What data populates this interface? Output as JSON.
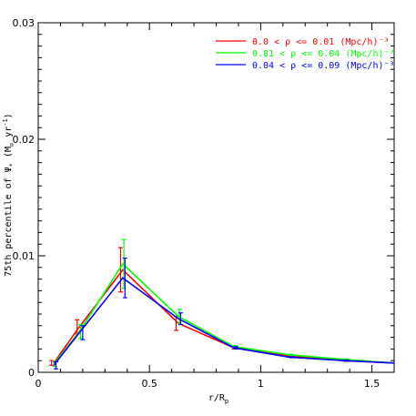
{
  "chart_data": {
    "type": "line",
    "xlabel": "r/R",
    "xlabel_sub": "p",
    "ylabel": "75th percentile of Ψ",
    "ylabel_sub": "*",
    "ylabel_units": " (M",
    "ylabel_units_sun": "⊙",
    "ylabel_units_end": " yr",
    "ylabel_units_exp": "-1",
    "ylabel_units_close": ")",
    "xlim": [
      0,
      1.6
    ],
    "ylim": [
      0,
      0.03
    ],
    "xticks": [
      0,
      0.5,
      1,
      1.5
    ],
    "xtick_labels": [
      "0",
      "0.5",
      "1",
      "1.5"
    ],
    "yticks": [
      0,
      0.01,
      0.02,
      0.03
    ],
    "ytick_labels": [
      "0",
      "0.01",
      "0.02",
      "0.03"
    ],
    "legend_position": "top-right",
    "series": [
      {
        "name": "0.0 < ρ <= 0.01 (Mpc/h)⁻³",
        "color": "#ff0000",
        "x": [
          0.07,
          0.185,
          0.38,
          0.63,
          0.88,
          1.13,
          1.38,
          1.6
        ],
        "y": [
          0.0008,
          0.0039,
          0.0088,
          0.0042,
          0.0021,
          0.0014,
          0.001,
          0.0008
        ],
        "err": [
          0.0002,
          0.0006,
          0.0019,
          0.0006,
          0.0001,
          5e-05,
          5e-05,
          0
        ],
        "err_x": [
          0.06,
          0.175,
          0.37,
          0.62,
          0.88,
          1.13,
          1.38,
          null
        ]
      },
      {
        "name": "0.01 < ρ <= 0.04 (Mpc/h)⁻³",
        "color": "#00ff00",
        "x": [
          0.07,
          0.185,
          0.38,
          0.63,
          0.88,
          1.13,
          1.38,
          1.6
        ],
        "y": [
          0.0007,
          0.0035,
          0.0093,
          0.0048,
          0.0022,
          0.0015,
          0.0011,
          0.0008
        ],
        "err": [
          0.0002,
          0.0006,
          0.0021,
          0.0006,
          0.0001,
          5e-05,
          5e-05,
          0
        ],
        "err_x": [
          0.075,
          0.19,
          0.385,
          0.635,
          0.885,
          1.135,
          1.385,
          null
        ]
      },
      {
        "name": "0.04 < ρ <= 0.09 (Mpc/h)⁻³",
        "color": "#0000ff",
        "x": [
          0.07,
          0.185,
          0.38,
          0.63,
          0.88,
          1.13,
          1.38,
          1.6
        ],
        "y": [
          0.0006,
          0.0034,
          0.0081,
          0.0046,
          0.0021,
          0.0013,
          0.001,
          0.0008
        ],
        "err": [
          0.0003,
          0.0006,
          0.0017,
          0.0005,
          0.0001,
          5e-05,
          5e-05,
          0
        ],
        "err_x": [
          0.08,
          0.2,
          0.39,
          0.64,
          0.89,
          1.14,
          1.39,
          null
        ]
      }
    ]
  }
}
